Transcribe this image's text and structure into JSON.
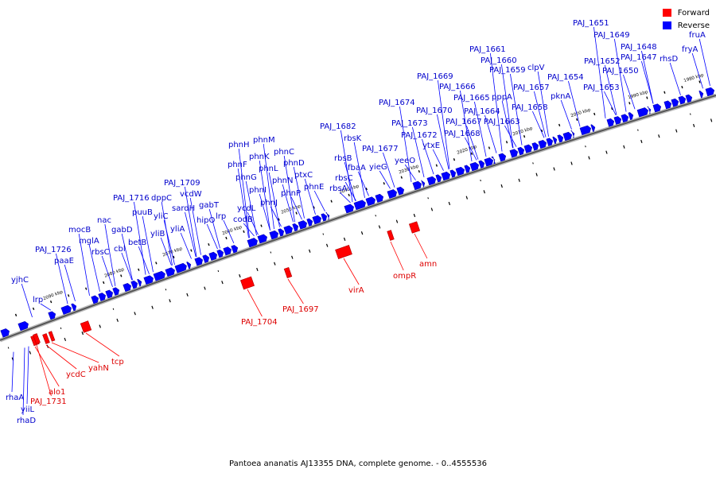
{
  "legend": {
    "forward_label": "Forward",
    "reverse_label": "Reverse",
    "forward_color": "#ff0000",
    "reverse_color": "#0000ff"
  },
  "caption": "Pantoea ananatis AJ13355 DNA, complete genome. - 0..4555536",
  "scale_ticks": [
    "1980 kbp",
    "1990 kbp",
    "2000 kbp",
    "2010 kbp",
    "2020 kbp",
    "2030 kbp",
    "2040 kbp",
    "2050 kbp",
    "2060 kbp",
    "2070 kbp",
    "2080 kbp",
    "2090 kbp"
  ],
  "forward_genes": [
    "PAJ_1704",
    "PAJ_1697",
    "virA",
    "ompR",
    "amn",
    "tcp",
    "yahN",
    "ycdC",
    "alo1",
    "PAJ_1731"
  ],
  "reverse_genes": [
    "PAJ_1651",
    "PAJ_1649",
    "PAJ_1648",
    "PAJ_1647",
    "PAJ_1652",
    "PAJ_1650",
    "PAJ_1653",
    "PAJ_1654",
    "rhsD",
    "fruA",
    "fryA",
    "PAJ_1661",
    "PAJ_1660",
    "PAJ_1659",
    "clpV",
    "PAJ_1657",
    "pppA",
    "PAJ_1658",
    "pknA",
    "PAJ_1669",
    "PAJ_1666",
    "PAJ_1665",
    "PAJ_1664",
    "PAJ_1667",
    "PAJ_1663",
    "PAJ_1668",
    "PAJ_1670",
    "PAJ_1674",
    "PAJ_1673",
    "PAJ_1672",
    "ytxE",
    "yeeO",
    "PAJ_1677",
    "yieG",
    "PAJ_1682",
    "rbsK",
    "rbsB",
    "fbaA",
    "rbsC",
    "rbsA",
    "phnH",
    "phnM",
    "phnK",
    "phnC",
    "phnF",
    "phnL",
    "phnD",
    "phnG",
    "phnN",
    "ptxC",
    "phnI",
    "phnP",
    "phnE",
    "ycdL",
    "phnJ",
    "codB",
    "PAJ_1709",
    "vcdW",
    "sardH",
    "gabT",
    "hipO",
    "lrp",
    "dppC",
    "PAJ_1716",
    "yliC",
    "yliA",
    "puuB",
    "yliB",
    "nac",
    "gabD",
    "betB",
    "cbl",
    "mocB",
    "mglA",
    "rbsC",
    "PAJ_1726",
    "paaE",
    "yjhC",
    "lrp",
    "rhaA",
    "yiiL",
    "rhaD"
  ]
}
